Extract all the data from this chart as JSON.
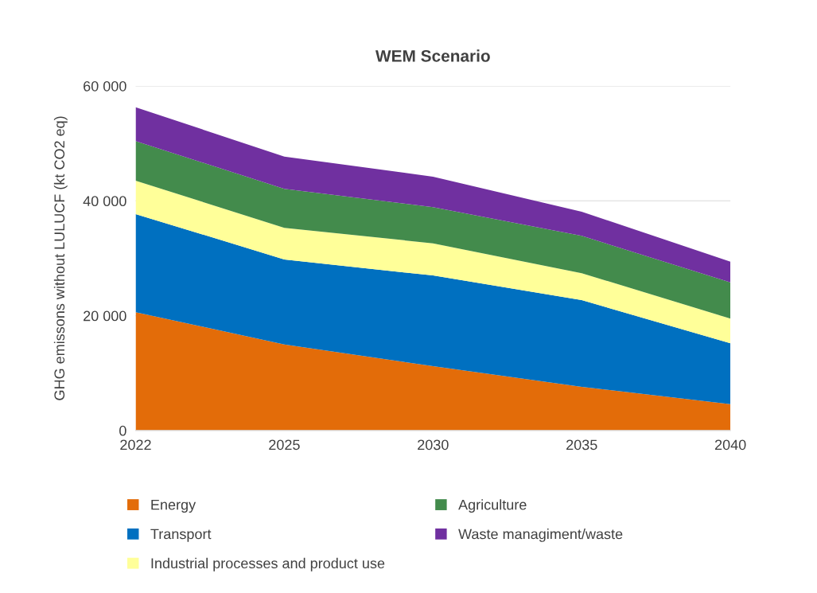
{
  "chart_data": {
    "type": "area",
    "stacked": true,
    "title": "WEM Scenario",
    "ylabel": "GHG emissons without LULUCF (kt CO2 eq)",
    "categories": [
      "2022",
      "2025",
      "2030",
      "2035",
      "2040"
    ],
    "series": [
      {
        "name": "Energy",
        "color": "#e36c09",
        "values": [
          20600,
          15000,
          11200,
          7600,
          4600
        ]
      },
      {
        "name": "Transport",
        "color": "#0070c0",
        "values": [
          17100,
          14800,
          15800,
          15100,
          10600
        ]
      },
      {
        "name": "Industrial processes and product use",
        "color": "#ffff99",
        "values": [
          5800,
          5500,
          5600,
          4700,
          4300
        ]
      },
      {
        "name": "Agriculture",
        "color": "#438b4c",
        "values": [
          6900,
          6800,
          6300,
          6500,
          6300
        ]
      },
      {
        "name": "Waste managiment/waste",
        "color": "#7030a0",
        "values": [
          5900,
          5600,
          5300,
          4200,
          3600
        ]
      }
    ],
    "ylim": [
      0,
      60000
    ],
    "yticks": [
      0,
      {
        "value": 20000,
        "label": "20 000"
      },
      {
        "value": 40000,
        "label": "40 000"
      },
      {
        "value": 60000,
        "label": "60 000"
      }
    ],
    "grid": "y",
    "legend": "bottom"
  }
}
